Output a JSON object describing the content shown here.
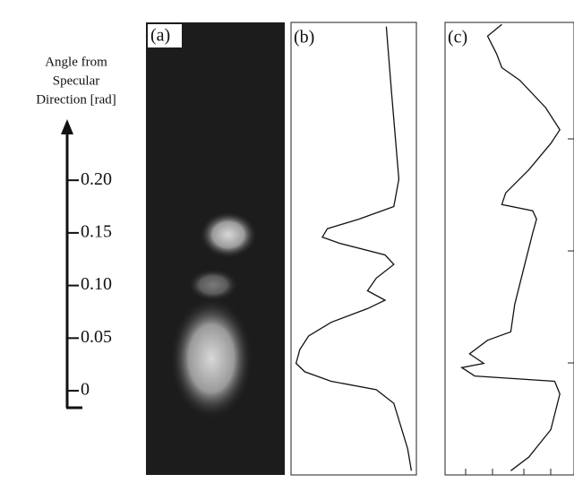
{
  "figure": {
    "axis": {
      "label_lines": [
        "Angle from",
        "Specular",
        "Direction [rad]"
      ],
      "ylim": [
        -0.08,
        0.35
      ],
      "yticks": [
        0,
        0.05,
        {
          "value": 0.1,
          "label": "0.10"
        },
        0.15,
        {
          "value": 0.2,
          "label": "0.20"
        }
      ]
    },
    "panels": [
      {
        "label": "(a)"
      },
      {
        "label": "(b)",
        "type": "line",
        "xlim": [
          0,
          1
        ],
        "angle": [
          0.346,
          0.286,
          0.201,
          0.175,
          0.163,
          0.154,
          0.146,
          0.14,
          0.129,
          0.12,
          0.107,
          0.095,
          0.086,
          0.078,
          0.065,
          0.052,
          0.039,
          0.026,
          0.018,
          0.009,
          0.001,
          -0.012,
          -0.055,
          -0.076
        ],
        "intensity": [
          0.76,
          0.8,
          0.86,
          0.82,
          0.54,
          0.29,
          0.25,
          0.39,
          0.75,
          0.82,
          0.68,
          0.61,
          0.75,
          0.61,
          0.32,
          0.14,
          0.07,
          0.04,
          0.11,
          0.32,
          0.68,
          0.82,
          0.93,
          0.96
        ]
      },
      {
        "label": "(c)",
        "type": "line",
        "xlim": [
          0,
          1
        ],
        "angle": [
          0.348,
          0.337,
          0.32,
          0.307,
          0.295,
          0.269,
          0.248,
          0.235,
          0.21,
          0.188,
          0.177,
          0.171,
          0.163,
          0.15,
          0.116,
          0.082,
          0.056,
          0.048,
          0.035,
          0.026,
          0.022,
          0.014,
          0.009,
          -0.003,
          -0.037,
          -0.063,
          -0.076
        ],
        "intensity": [
          0.44,
          0.33,
          0.4,
          0.44,
          0.58,
          0.78,
          0.89,
          0.82,
          0.65,
          0.47,
          0.44,
          0.68,
          0.71,
          0.68,
          0.61,
          0.54,
          0.51,
          0.33,
          0.19,
          0.3,
          0.13,
          0.23,
          0.85,
          0.89,
          0.82,
          0.65,
          0.51
        ]
      }
    ]
  }
}
